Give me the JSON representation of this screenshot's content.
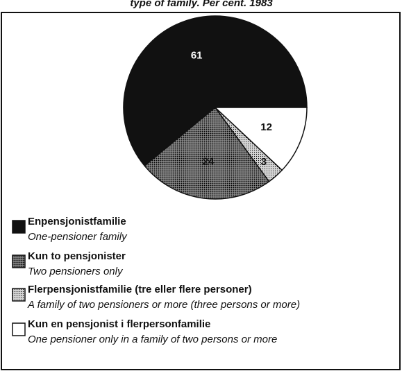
{
  "chart_data": {
    "type": "pie",
    "title": "type of family. Per cent. 1983",
    "categories": [
      "Enpensjonistfamilie",
      "Kun to pensjonister",
      "Flerpensjonistfamilie (tre eller flere personer)",
      "Kun en pensjonist i flerpersonfamilie"
    ],
    "translations": [
      "One-pensioner family",
      "Two pensioners only",
      "A family of two pensioners or more (three persons or more)",
      "One pensioner only in a family of two persons or more"
    ],
    "values": [
      61,
      24,
      3,
      12
    ],
    "colors": [
      "#111111",
      "#5a5a5a",
      "#c8c8c8",
      "#ffffff"
    ]
  }
}
